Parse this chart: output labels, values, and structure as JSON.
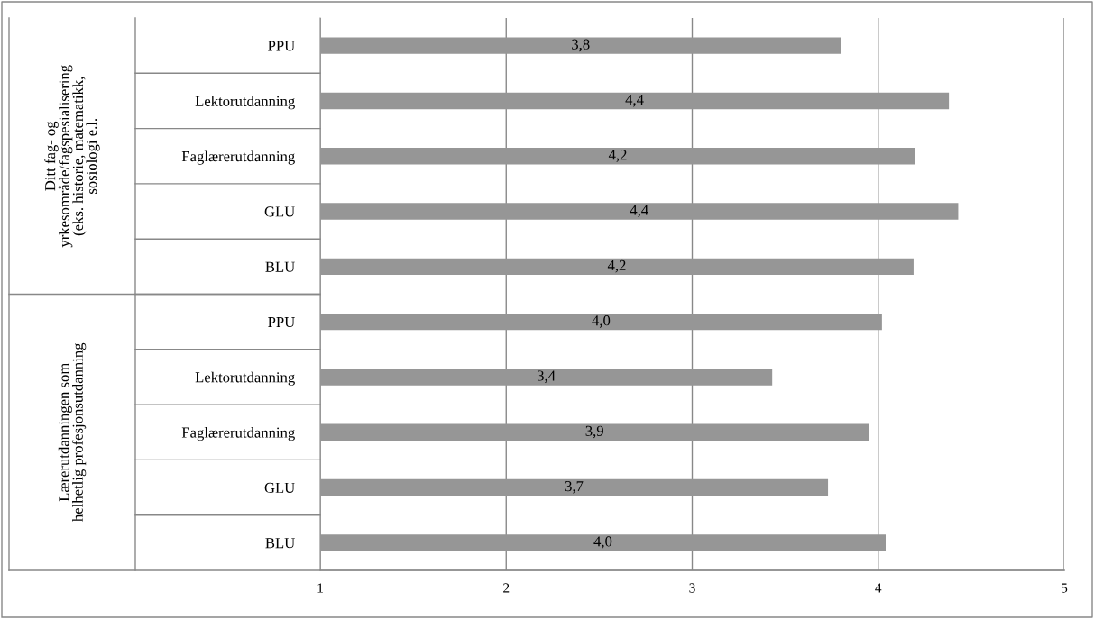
{
  "chart_data": {
    "type": "bar",
    "orientation": "horizontal",
    "categories": [
      "PPU",
      "Lektorutdanning",
      "Faglærerutdanning",
      "GLU",
      "BLU",
      "PPU",
      "Lektorutdanning",
      "Faglærerutdanning",
      "GLU",
      "BLU"
    ],
    "values": [
      3.8,
      4.38,
      4.2,
      4.43,
      4.19,
      4.02,
      3.43,
      3.95,
      3.73,
      4.04
    ],
    "value_labels": [
      "3,8",
      "4,4",
      "4,2",
      "4,4",
      "4,2",
      "4,0",
      "3,4",
      "3,9",
      "3,7",
      "4,0"
    ],
    "color": "#969696",
    "xlim": [
      1,
      5
    ],
    "xticks": [
      1,
      2,
      3,
      4,
      5
    ],
    "grid": "x",
    "annotations": [
      "Ditt fag- og\nyrkesområde/fagspesialisering\n(eks. historie, matematikk,\nsosiologi e.l.",
      "Lærerutdanningen som\nhelhetlig profesjonsutdanning"
    ]
  }
}
